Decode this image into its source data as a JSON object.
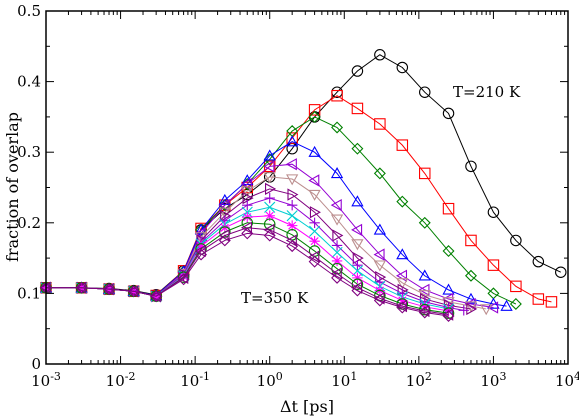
{
  "chart_data": {
    "type": "line",
    "title": "",
    "xlabel": "Δt [ps]",
    "ylabel": "fraction of overlap",
    "xscale": "log",
    "xlim": [
      0.001,
      10000
    ],
    "ylim": [
      0,
      0.5
    ],
    "grid": false,
    "legend": "none",
    "x_ticks": [
      "10^-3",
      "10^-2",
      "10^-1",
      "10^0",
      "10^1",
      "10^2",
      "10^3",
      "10^4"
    ],
    "x_tick_labels": [
      {
        "base": "10",
        "exp": "-3"
      },
      {
        "base": "10",
        "exp": "-2"
      },
      {
        "base": "10",
        "exp": "-1"
      },
      {
        "base": "10",
        "exp": "0"
      },
      {
        "base": "10",
        "exp": "1"
      },
      {
        "base": "10",
        "exp": "2"
      },
      {
        "base": "10",
        "exp": "3"
      },
      {
        "base": "10",
        "exp": "4"
      }
    ],
    "y_ticks": [
      "0",
      "0.1",
      "0.2",
      "0.3",
      "0.4",
      "0.5"
    ],
    "annotations": [
      "T=210 K",
      "T=350 K"
    ],
    "series": [
      {
        "color": "#000000",
        "marker": "circle",
        "x": [
          0.001,
          0.003,
          0.007,
          0.015,
          0.03,
          0.07,
          0.12,
          0.25,
          0.5,
          1,
          2,
          4,
          8,
          15,
          30,
          60,
          120,
          250,
          500,
          1000,
          2000,
          4000,
          8000
        ],
        "y": [
          0.108,
          0.108,
          0.107,
          0.104,
          0.098,
          0.132,
          0.19,
          0.22,
          0.24,
          0.265,
          0.305,
          0.35,
          0.385,
          0.415,
          0.438,
          0.42,
          0.385,
          0.355,
          0.28,
          0.215,
          0.175,
          0.145,
          0.13
        ]
      },
      {
        "color": "#ff0000",
        "marker": "square",
        "x": [
          0.001,
          0.003,
          0.007,
          0.015,
          0.03,
          0.07,
          0.12,
          0.25,
          0.5,
          1,
          2,
          4,
          8,
          15,
          30,
          60,
          120,
          250,
          500,
          1000,
          2000,
          4000,
          6000
        ],
        "y": [
          0.108,
          0.108,
          0.106,
          0.103,
          0.097,
          0.132,
          0.192,
          0.225,
          0.25,
          0.28,
          0.32,
          0.36,
          0.38,
          0.362,
          0.34,
          0.31,
          0.27,
          0.22,
          0.175,
          0.14,
          0.11,
          0.092,
          0.088
        ]
      },
      {
        "color": "#008000",
        "marker": "diamond",
        "x": [
          0.001,
          0.003,
          0.007,
          0.015,
          0.03,
          0.07,
          0.12,
          0.25,
          0.5,
          1,
          2,
          4,
          8,
          15,
          30,
          60,
          120,
          250,
          500,
          1000,
          2000
        ],
        "y": [
          0.108,
          0.108,
          0.106,
          0.103,
          0.097,
          0.131,
          0.19,
          0.225,
          0.255,
          0.29,
          0.33,
          0.35,
          0.335,
          0.305,
          0.27,
          0.23,
          0.2,
          0.16,
          0.125,
          0.1,
          0.085
        ]
      },
      {
        "color": "#0000ff",
        "marker": "triangle-up",
        "x": [
          0.001,
          0.003,
          0.007,
          0.015,
          0.03,
          0.07,
          0.12,
          0.25,
          0.5,
          1,
          2,
          4,
          8,
          15,
          30,
          60,
          120,
          250,
          500,
          1000,
          1500
        ],
        "y": [
          0.108,
          0.108,
          0.106,
          0.103,
          0.097,
          0.131,
          0.19,
          0.232,
          0.26,
          0.295,
          0.315,
          0.3,
          0.27,
          0.23,
          0.19,
          0.155,
          0.125,
          0.105,
          0.092,
          0.085,
          0.082
        ]
      },
      {
        "color": "#9400d3",
        "marker": "triangle-left",
        "x": [
          0.001,
          0.003,
          0.007,
          0.015,
          0.03,
          0.07,
          0.12,
          0.25,
          0.5,
          1,
          2,
          4,
          8,
          15,
          30,
          60,
          120,
          250,
          500,
          1000
        ],
        "y": [
          0.108,
          0.108,
          0.106,
          0.103,
          0.096,
          0.13,
          0.185,
          0.225,
          0.255,
          0.28,
          0.283,
          0.26,
          0.225,
          0.19,
          0.155,
          0.125,
          0.105,
          0.092,
          0.085,
          0.08
        ]
      },
      {
        "color": "#bc8f8f",
        "marker": "triangle-down",
        "x": [
          0.001,
          0.003,
          0.007,
          0.015,
          0.03,
          0.07,
          0.12,
          0.25,
          0.5,
          1,
          2,
          4,
          8,
          15,
          30,
          60,
          120,
          250,
          500,
          800
        ],
        "y": [
          0.108,
          0.108,
          0.106,
          0.103,
          0.096,
          0.128,
          0.18,
          0.215,
          0.245,
          0.265,
          0.262,
          0.24,
          0.205,
          0.17,
          0.14,
          0.115,
          0.098,
          0.088,
          0.082,
          0.078
        ]
      },
      {
        "color": "#800080",
        "marker": "triangle-right",
        "x": [
          0.001,
          0.003,
          0.007,
          0.015,
          0.03,
          0.07,
          0.12,
          0.25,
          0.5,
          1,
          2,
          4,
          8,
          15,
          30,
          60,
          120,
          250,
          500
        ],
        "y": [
          0.108,
          0.108,
          0.106,
          0.103,
          0.096,
          0.127,
          0.175,
          0.21,
          0.235,
          0.248,
          0.24,
          0.215,
          0.182,
          0.15,
          0.123,
          0.105,
          0.092,
          0.083,
          0.078
        ]
      },
      {
        "color": "#9400d3",
        "marker": "plus",
        "x": [
          0.001,
          0.003,
          0.007,
          0.015,
          0.03,
          0.07,
          0.12,
          0.25,
          0.5,
          1,
          2,
          4,
          8,
          15,
          30,
          60,
          120,
          250,
          400
        ],
        "y": [
          0.108,
          0.108,
          0.106,
          0.103,
          0.096,
          0.126,
          0.172,
          0.203,
          0.225,
          0.235,
          0.225,
          0.2,
          0.168,
          0.14,
          0.116,
          0.1,
          0.088,
          0.08,
          0.076
        ]
      },
      {
        "color": "#00ced1",
        "marker": "x",
        "x": [
          0.001,
          0.003,
          0.007,
          0.015,
          0.03,
          0.07,
          0.12,
          0.25,
          0.5,
          1,
          2,
          4,
          8,
          15,
          30,
          60,
          120,
          250
        ],
        "y": [
          0.108,
          0.108,
          0.106,
          0.103,
          0.096,
          0.125,
          0.17,
          0.198,
          0.215,
          0.222,
          0.21,
          0.188,
          0.158,
          0.132,
          0.11,
          0.095,
          0.085,
          0.078
        ]
      },
      {
        "color": "#ff00ff",
        "marker": "star",
        "x": [
          0.001,
          0.003,
          0.007,
          0.015,
          0.03,
          0.07,
          0.12,
          0.25,
          0.5,
          1,
          2,
          4,
          8,
          15,
          30,
          60,
          120,
          250
        ],
        "y": [
          0.108,
          0.108,
          0.106,
          0.103,
          0.096,
          0.124,
          0.167,
          0.193,
          0.208,
          0.21,
          0.196,
          0.174,
          0.146,
          0.122,
          0.104,
          0.09,
          0.081,
          0.075
        ]
      },
      {
        "color": "#008000",
        "marker": "circle",
        "x": [
          0.001,
          0.003,
          0.007,
          0.015,
          0.03,
          0.07,
          0.12,
          0.25,
          0.5,
          1,
          2,
          4,
          8,
          15,
          30,
          60,
          120,
          250
        ],
        "y": [
          0.108,
          0.108,
          0.106,
          0.103,
          0.096,
          0.123,
          0.163,
          0.187,
          0.2,
          0.198,
          0.183,
          0.16,
          0.135,
          0.113,
          0.097,
          0.085,
          0.077,
          0.072
        ]
      },
      {
        "color": "#800080",
        "marker": "triangle-left",
        "x": [
          0.001,
          0.003,
          0.007,
          0.015,
          0.03,
          0.07,
          0.12,
          0.25,
          0.5,
          1,
          2,
          4,
          8,
          15,
          30,
          60,
          120,
          250
        ],
        "y": [
          0.108,
          0.108,
          0.106,
          0.103,
          0.096,
          0.122,
          0.16,
          0.182,
          0.193,
          0.19,
          0.175,
          0.152,
          0.128,
          0.108,
          0.093,
          0.082,
          0.075,
          0.07
        ]
      },
      {
        "color": "#800080",
        "marker": "diamond",
        "x": [
          0.001,
          0.003,
          0.007,
          0.015,
          0.03,
          0.07,
          0.12,
          0.25,
          0.5,
          1,
          2,
          4,
          8,
          15,
          30,
          60,
          120,
          250
        ],
        "y": [
          0.108,
          0.108,
          0.106,
          0.103,
          0.096,
          0.12,
          0.155,
          0.175,
          0.185,
          0.182,
          0.167,
          0.145,
          0.122,
          0.104,
          0.09,
          0.08,
          0.073,
          0.068
        ]
      }
    ]
  }
}
